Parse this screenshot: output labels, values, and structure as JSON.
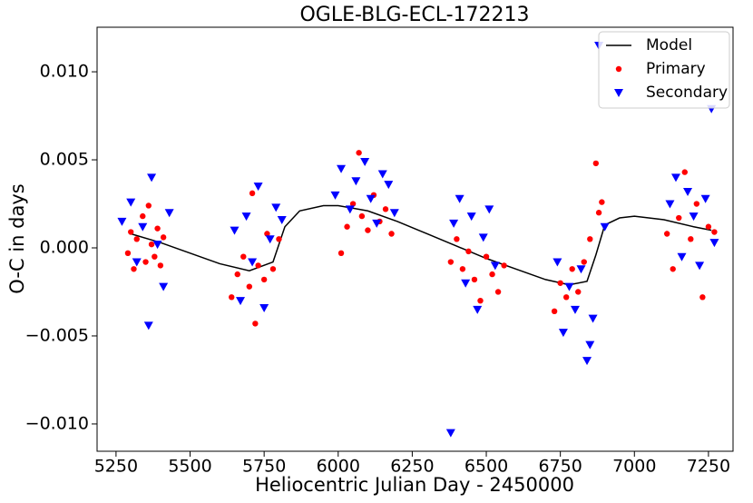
{
  "chart_data": {
    "type": "scatter",
    "title": "OGLE-BLG-ECL-172213",
    "x_label": "Heliocentric Julian Day - 2450000",
    "y_label": "O-C in days",
    "xlim": [
      5186,
      7333
    ],
    "ylim": [
      -0.01155,
      0.01253
    ],
    "xticks": [
      5250,
      5500,
      5750,
      6000,
      6250,
      6500,
      6750,
      7000,
      7250
    ],
    "yticks": [
      {
        "value": -0.01,
        "label": "−0.010"
      },
      {
        "value": -0.005,
        "label": "−0.005"
      },
      {
        "value": 0,
        "label": "0.000"
      },
      {
        "value": 0.005,
        "label": "0.005"
      },
      {
        "value": 0.01,
        "label": "0.010"
      }
    ],
    "legend": "upper right",
    "series": [
      {
        "name": "Model",
        "color": "#000000",
        "kind": "line",
        "x": [
          5300,
          5400,
          5500,
          5600,
          5700,
          5780,
          5820,
          5870,
          5950,
          6000,
          6100,
          6200,
          6300,
          6400,
          6500,
          6600,
          6700,
          6780,
          6840,
          6870,
          6900,
          6950,
          7000,
          7100,
          7200,
          7260
        ],
        "values": [
          0.0008,
          0.0003,
          -0.0003,
          -0.0009,
          -0.0013,
          -0.0008,
          0.0012,
          0.0021,
          0.0024,
          0.0024,
          0.0021,
          0.0015,
          0.0008,
          0.0001,
          -0.0006,
          -0.0012,
          -0.0018,
          -0.0021,
          -0.0019,
          -0.0004,
          0.0013,
          0.0017,
          0.0018,
          0.0016,
          0.0012,
          0.001
        ]
      },
      {
        "name": "Primary",
        "color": "#ff0000",
        "kind": "circle",
        "x": [
          5290,
          5300,
          5310,
          5320,
          5340,
          5350,
          5360,
          5370,
          5380,
          5390,
          5400,
          5410,
          5640,
          5660,
          5680,
          5700,
          5710,
          5720,
          5730,
          5750,
          5760,
          5780,
          5800,
          6010,
          6030,
          6050,
          6070,
          6080,
          6100,
          6120,
          6140,
          6160,
          6180,
          6380,
          6400,
          6420,
          6440,
          6460,
          6480,
          6500,
          6520,
          6540,
          6560,
          6730,
          6750,
          6770,
          6790,
          6810,
          6830,
          6850,
          6870,
          6880,
          6890,
          7110,
          7130,
          7150,
          7170,
          7190,
          7210,
          7230,
          7250,
          7270
        ],
        "values": [
          -0.0003,
          0.0009,
          -0.0012,
          0.0005,
          0.0018,
          -0.0008,
          0.0024,
          0.0002,
          -0.0005,
          0.0011,
          -0.001,
          0.0006,
          -0.0028,
          -0.0015,
          -0.0005,
          -0.0022,
          0.0031,
          -0.0043,
          -0.001,
          -0.0018,
          0.0008,
          -0.0012,
          0.0005,
          -0.0003,
          0.0012,
          0.0025,
          0.0054,
          0.0018,
          0.001,
          0.003,
          0.0015,
          0.0022,
          0.0008,
          -0.0008,
          0.0005,
          -0.0012,
          -0.0002,
          -0.0018,
          -0.003,
          -0.0005,
          -0.0015,
          -0.0025,
          -0.001,
          -0.0036,
          -0.002,
          -0.0028,
          -0.0012,
          -0.0025,
          -0.0008,
          0.0005,
          0.0048,
          0.002,
          0.0026,
          0.0008,
          -0.0012,
          0.0017,
          0.0043,
          0.0005,
          0.0025,
          -0.0028,
          0.0012,
          0.0009
        ]
      },
      {
        "name": "Secondary",
        "color": "#0000ff",
        "kind": "triangle",
        "x": [
          5270,
          5300,
          5320,
          5340,
          5360,
          5370,
          5390,
          5410,
          5430,
          5650,
          5670,
          5690,
          5710,
          5730,
          5750,
          5770,
          5790,
          5810,
          5990,
          6010,
          6040,
          6060,
          6090,
          6110,
          6130,
          6150,
          6170,
          6190,
          6380,
          6390,
          6410,
          6430,
          6450,
          6470,
          6490,
          6510,
          6530,
          6740,
          6760,
          6780,
          6800,
          6820,
          6840,
          6850,
          6860,
          6880,
          6900,
          7120,
          7140,
          7160,
          7180,
          7200,
          7220,
          7240,
          7260,
          7270
        ],
        "values": [
          0.0015,
          0.0026,
          -0.0008,
          0.0012,
          -0.0044,
          0.004,
          0.0002,
          -0.0022,
          0.002,
          0.001,
          -0.003,
          0.0018,
          -0.0008,
          0.0035,
          -0.0034,
          0.0005,
          0.0023,
          0.0016,
          0.003,
          0.0045,
          0.0022,
          0.0038,
          0.0049,
          0.0028,
          0.0014,
          0.0042,
          0.0036,
          0.002,
          -0.0105,
          0.0014,
          0.0028,
          -0.002,
          0.0018,
          -0.0035,
          0.0006,
          0.0022,
          -0.001,
          -0.0008,
          -0.0048,
          -0.0022,
          -0.0035,
          -0.0012,
          -0.0064,
          -0.0055,
          -0.004,
          0.0115,
          0.0012,
          0.0025,
          0.004,
          -0.0005,
          0.0032,
          0.0018,
          -0.001,
          0.0028,
          0.0079,
          0.0003
        ]
      }
    ]
  }
}
